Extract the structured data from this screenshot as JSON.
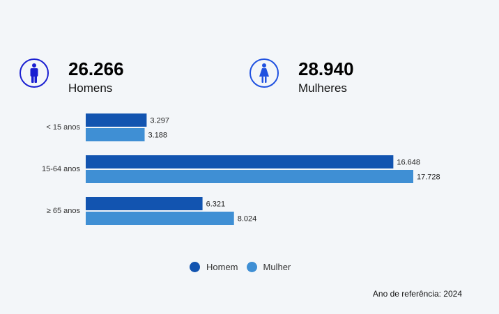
{
  "summary": {
    "men": {
      "value": "26.266",
      "label": "Homens",
      "icon": "male-person-icon"
    },
    "women": {
      "value": "28.940",
      "label": "Mulheres",
      "icon": "female-person-icon"
    }
  },
  "colors": {
    "homem": "#1254b0",
    "mulher": "#3f8fd4",
    "men_icon": "#1a1fd1",
    "women_icon": "#1f51e0"
  },
  "chart_data": {
    "type": "bar",
    "orientation": "horizontal",
    "categories": [
      "< 15 anos",
      "15-64 anos",
      "≥ 65 anos"
    ],
    "series": [
      {
        "name": "Homem",
        "values": [
          3297,
          16648,
          6321
        ],
        "labels": [
          "3.297",
          "16.648",
          "6.321"
        ]
      },
      {
        "name": "Mulher",
        "values": [
          3188,
          17728,
          8024
        ],
        "labels": [
          "3.188",
          "17.728",
          "8.024"
        ]
      }
    ],
    "xlim": [
      0,
      17728
    ],
    "legend": "bottom-center",
    "grid": false
  },
  "legend": {
    "homem": "Homem",
    "mulher": "Mulher"
  },
  "footer": {
    "reference": "Ano de referência: 2024"
  }
}
